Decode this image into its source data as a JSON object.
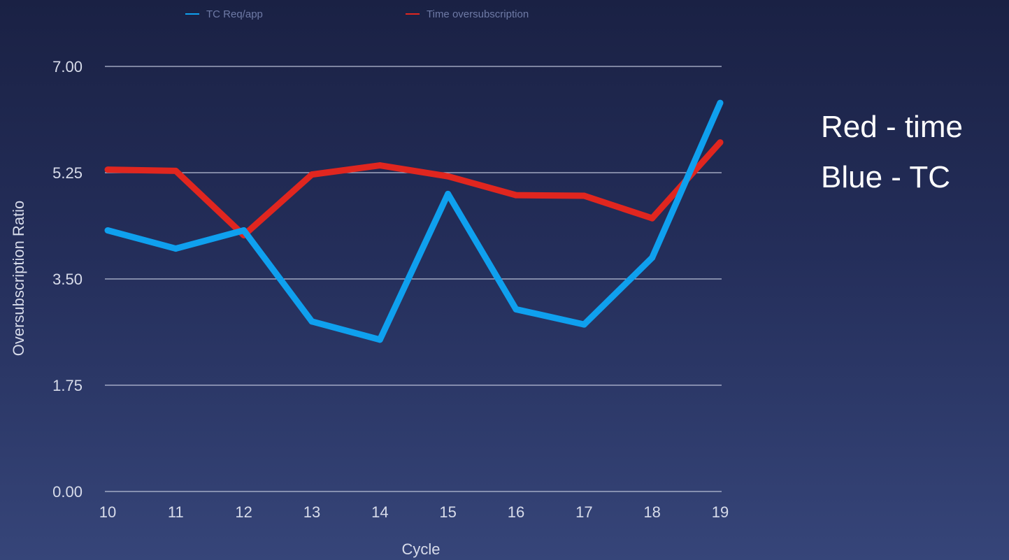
{
  "chart_data": {
    "type": "line",
    "title": "",
    "xlabel": "Cycle",
    "ylabel": "Oversubscription Ratio",
    "x": [
      10,
      11,
      12,
      13,
      14,
      15,
      16,
      17,
      18,
      19
    ],
    "x_tick_labels": [
      "10",
      "11",
      "12",
      "13",
      "14",
      "15",
      "16",
      "17",
      "18",
      "19"
    ],
    "y_tick_labels": [
      "7.00",
      "5.25",
      "3.50",
      "1.75",
      "0.00"
    ],
    "ylim": [
      0,
      7
    ],
    "grid": true,
    "legend_position": "top",
    "series": [
      {
        "name": "TC Req/app",
        "color": "#0fa0ee",
        "values": [
          4.3,
          4.0,
          4.3,
          2.8,
          2.5,
          4.9,
          3.0,
          2.75,
          3.85,
          6.4
        ]
      },
      {
        "name": "Time oversubscription",
        "color": "#e0261f",
        "values": [
          5.3,
          5.28,
          4.22,
          5.22,
          5.37,
          5.19,
          4.88,
          4.87,
          4.5,
          5.75
        ]
      }
    ]
  },
  "annotation": {
    "line1": "Red - time",
    "line2": "Blue - TC"
  }
}
